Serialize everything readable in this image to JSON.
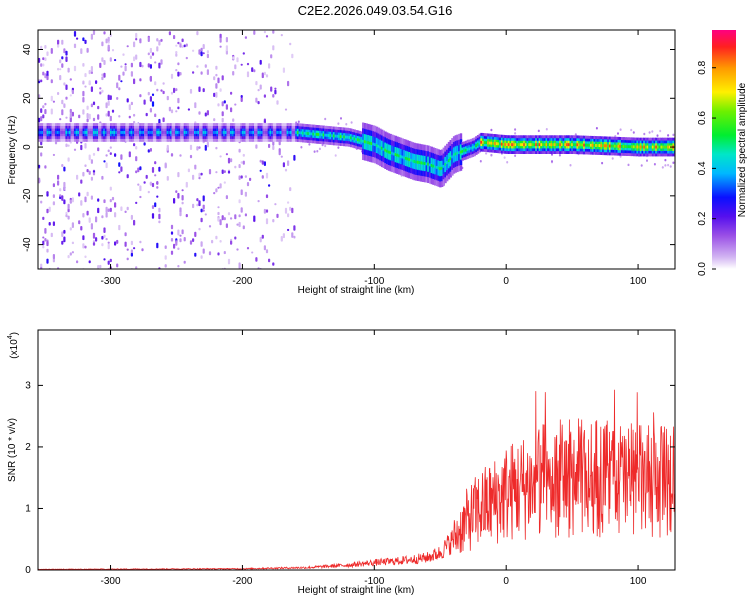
{
  "title": "C2E2.2026.049.03.54.G16",
  "chart_data": [
    {
      "type": "heatmap",
      "name": "spectrogram",
      "xlabel": "Height of straight line (km)",
      "ylabel": "Frequency (Hz)",
      "xlim": [
        -355,
        128
      ],
      "ylim": [
        -50,
        48
      ],
      "xticks": [
        -300,
        -200,
        -100,
        0,
        100
      ],
      "yticks": [
        -40,
        -20,
        0,
        20,
        40
      ],
      "colorbar": {
        "label": "Normalized spectral amplitude",
        "range": [
          0,
          0.95
        ],
        "ticks": [
          0.0,
          0.2,
          0.4,
          0.6,
          0.8
        ]
      },
      "ridge": {
        "description": "dominant tone frequency vs height",
        "x": [
          -355,
          -300,
          -250,
          -200,
          -160,
          -140,
          -120,
          -100,
          -90,
          -80,
          -70,
          -60,
          -55,
          -50,
          -45,
          -40,
          -30,
          -25,
          -20,
          0,
          50,
          100,
          128
        ],
        "y": [
          6,
          6,
          6,
          6,
          6,
          5,
          4,
          1,
          -2,
          -4,
          -6,
          -7,
          -8,
          -9,
          -6,
          -3,
          -1,
          0,
          2,
          1,
          1,
          0,
          0
        ]
      }
    },
    {
      "type": "line",
      "name": "snr",
      "xlabel": "Height of straight line (km)",
      "ylabel": "SNR (10 * v/v)",
      "scale_label": "(x10",
      "scale_exp": "4",
      "xlim": [
        -355,
        128
      ],
      "ylim": [
        0,
        3.9
      ],
      "xticks": [
        -300,
        -200,
        -100,
        0,
        100
      ],
      "yticks": [
        0,
        1,
        2,
        3
      ],
      "color": "#ee2a2a",
      "envelope": {
        "description": "approximate mean SNR (x10^4) vs height",
        "x": [
          -355,
          -200,
          -150,
          -120,
          -100,
          -80,
          -60,
          -50,
          -40,
          -30,
          -20,
          -10,
          0,
          20,
          40,
          60,
          80,
          100,
          128
        ],
        "y": [
          0.01,
          0.02,
          0.04,
          0.08,
          0.12,
          0.15,
          0.2,
          0.28,
          0.5,
          0.8,
          1.0,
          1.1,
          1.25,
          1.4,
          1.5,
          1.5,
          1.5,
          1.45,
          1.4
        ]
      }
    }
  ]
}
